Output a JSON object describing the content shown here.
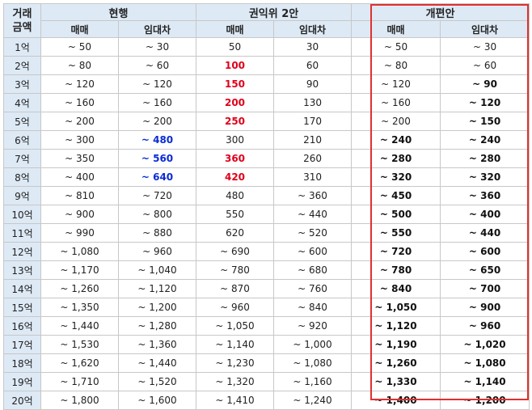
{
  "header": {
    "row_head_line1": "거래",
    "row_head_line2": "금액",
    "groups": [
      "현행",
      "권익위 2안",
      "개편안"
    ],
    "sub": [
      "매매",
      "임대차",
      "매매",
      "임대차",
      "매매",
      "임대차"
    ]
  },
  "rows": [
    {
      "amount": "1억",
      "cur_sale": "~ 50",
      "cur_rent": "~ 30",
      "acrc_sale": "50",
      "acrc_rent": "30",
      "new_sale": "~ 50",
      "new_rent": "~ 30"
    },
    {
      "amount": "2억",
      "cur_sale": "~ 80",
      "cur_rent": "~ 60",
      "acrc_sale": "100",
      "acrc_rent": "60",
      "new_sale": "~ 80",
      "new_rent": "~ 60"
    },
    {
      "amount": "3억",
      "cur_sale": "~ 120",
      "cur_rent": "~ 120",
      "acrc_sale": "150",
      "acrc_rent": "90",
      "new_sale": "~ 120",
      "new_rent": "~ 90"
    },
    {
      "amount": "4억",
      "cur_sale": "~ 160",
      "cur_rent": "~ 160",
      "acrc_sale": "200",
      "acrc_rent": "130",
      "new_sale": "~ 160",
      "new_rent": "~ 120"
    },
    {
      "amount": "5억",
      "cur_sale": "~ 200",
      "cur_rent": "~ 200",
      "acrc_sale": "250",
      "acrc_rent": "170",
      "new_sale": "~ 200",
      "new_rent": "~ 150"
    },
    {
      "amount": "6억",
      "cur_sale": "~ 300",
      "cur_rent": "~ 480",
      "acrc_sale": "300",
      "acrc_rent": "210",
      "new_sale": "~ 240",
      "new_rent": "~ 240"
    },
    {
      "amount": "7억",
      "cur_sale": "~ 350",
      "cur_rent": "~ 560",
      "acrc_sale": "360",
      "acrc_rent": "260",
      "new_sale": "~ 280",
      "new_rent": "~ 280"
    },
    {
      "amount": "8억",
      "cur_sale": "~ 400",
      "cur_rent": "~ 640",
      "acrc_sale": "420",
      "acrc_rent": "310",
      "new_sale": "~ 320",
      "new_rent": "~ 320"
    },
    {
      "amount": "9억",
      "cur_sale": "~ 810",
      "cur_rent": "~ 720",
      "acrc_sale": "480",
      "acrc_rent": "~ 360",
      "new_sale": "~ 450",
      "new_rent": "~ 360"
    },
    {
      "amount": "10억",
      "cur_sale": "~ 900",
      "cur_rent": "~ 800",
      "acrc_sale": "550",
      "acrc_rent": "~ 440",
      "new_sale": "~ 500",
      "new_rent": "~ 400"
    },
    {
      "amount": "11억",
      "cur_sale": "~ 990",
      "cur_rent": "~ 880",
      "acrc_sale": "620",
      "acrc_rent": "~ 520",
      "new_sale": "~ 550",
      "new_rent": "~ 440"
    },
    {
      "amount": "12억",
      "cur_sale": "~ 1,080",
      "cur_rent": "~ 960",
      "acrc_sale": "~ 690",
      "acrc_rent": "~ 600",
      "new_sale": "~ 720",
      "new_rent": "~ 600"
    },
    {
      "amount": "13억",
      "cur_sale": "~ 1,170",
      "cur_rent": "~ 1,040",
      "acrc_sale": "~ 780",
      "acrc_rent": "~ 680",
      "new_sale": "~ 780",
      "new_rent": "~ 650"
    },
    {
      "amount": "14억",
      "cur_sale": "~ 1,260",
      "cur_rent": "~ 1,120",
      "acrc_sale": "~ 870",
      "acrc_rent": "~ 760",
      "new_sale": "~ 840",
      "new_rent": "~ 700"
    },
    {
      "amount": "15억",
      "cur_sale": "~ 1,350",
      "cur_rent": "~ 1,200",
      "acrc_sale": "~ 960",
      "acrc_rent": "~ 840",
      "new_sale": "~ 1,050",
      "new_rent": "~ 900"
    },
    {
      "amount": "16억",
      "cur_sale": "~ 1,440",
      "cur_rent": "~ 1,280",
      "acrc_sale": "~ 1,050",
      "acrc_rent": "~ 920",
      "new_sale": "~ 1,120",
      "new_rent": "~ 960"
    },
    {
      "amount": "17억",
      "cur_sale": "~ 1,530",
      "cur_rent": "~ 1,360",
      "acrc_sale": "~ 1,140",
      "acrc_rent": "~ 1,000",
      "new_sale": "~ 1,190",
      "new_rent": "~ 1,020"
    },
    {
      "amount": "18억",
      "cur_sale": "~ 1,620",
      "cur_rent": "~ 1,440",
      "acrc_sale": "~ 1,230",
      "acrc_rent": "~ 1,080",
      "new_sale": "~ 1,260",
      "new_rent": "~ 1,080"
    },
    {
      "amount": "19억",
      "cur_sale": "~ 1,710",
      "cur_rent": "~ 1,520",
      "acrc_sale": "~ 1,320",
      "acrc_rent": "~ 1,160",
      "new_sale": "~ 1,330",
      "new_rent": "~ 1,140"
    },
    {
      "amount": "20억",
      "cur_sale": "~ 1,800",
      "cur_rent": "~ 1,600",
      "acrc_sale": "~ 1,410",
      "acrc_rent": "~ 1,240",
      "new_sale": "~ 1,400",
      "new_rent": "~ 1,200"
    }
  ],
  "highlights": {
    "acrc_sale_red_rows": [
      2,
      3,
      4,
      5,
      7,
      8
    ],
    "cur_rent_blue_rows": [
      6,
      7,
      8
    ],
    "colors": {
      "red": "#e0001a",
      "blue": "#0b2bd6",
      "header_bg": "#dde9f5",
      "box": "#e0302f"
    }
  }
}
